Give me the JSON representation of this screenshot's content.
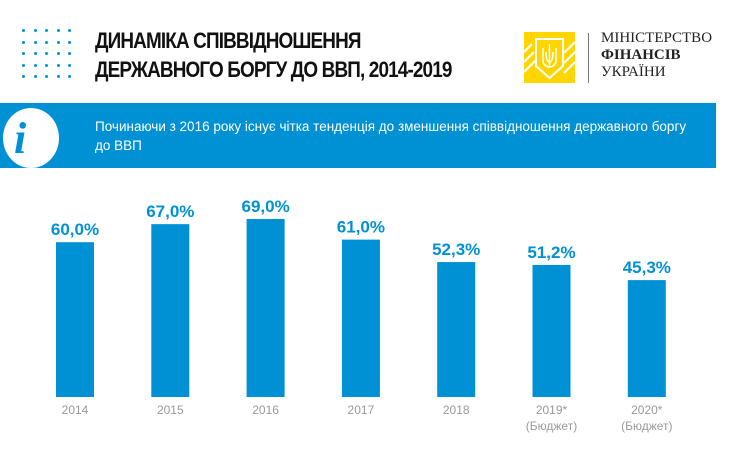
{
  "header": {
    "title_line1": "ДИНАМІКА СПІВВІДНОШЕННЯ",
    "title_line2": "ДЕРЖАВНОГО БОРГУ ДО ВВП, 2014-2019"
  },
  "logo": {
    "line1": "МІНІСТЕРСТВО",
    "line2": "ФІНАНСІВ",
    "line3": "УКРАЇНИ",
    "color": "#ffd500"
  },
  "banner": {
    "icon": "info-icon",
    "text": "Починаючи з 2016 року існує чітка тенденція до зменшення співвідношення державного боргу до ВВП",
    "color": "#0091d5"
  },
  "chart_data": {
    "type": "bar",
    "categories": [
      "2014",
      "2015",
      "2016",
      "2017",
      "2018",
      "2019*",
      "2020*"
    ],
    "category_sublabels": [
      "",
      "",
      "",
      "",
      "",
      "(Бюджет)",
      "(Бюджет)"
    ],
    "values": [
      60.0,
      67.0,
      69.0,
      61.0,
      52.3,
      51.2,
      45.3
    ],
    "value_labels": [
      "60,0%",
      "67,0%",
      "69,0%",
      "61,0%",
      "52,3%",
      "51,2%",
      "45,3%"
    ],
    "ylim": [
      0,
      75
    ],
    "grid": false,
    "bar_color": "#0091d5"
  }
}
